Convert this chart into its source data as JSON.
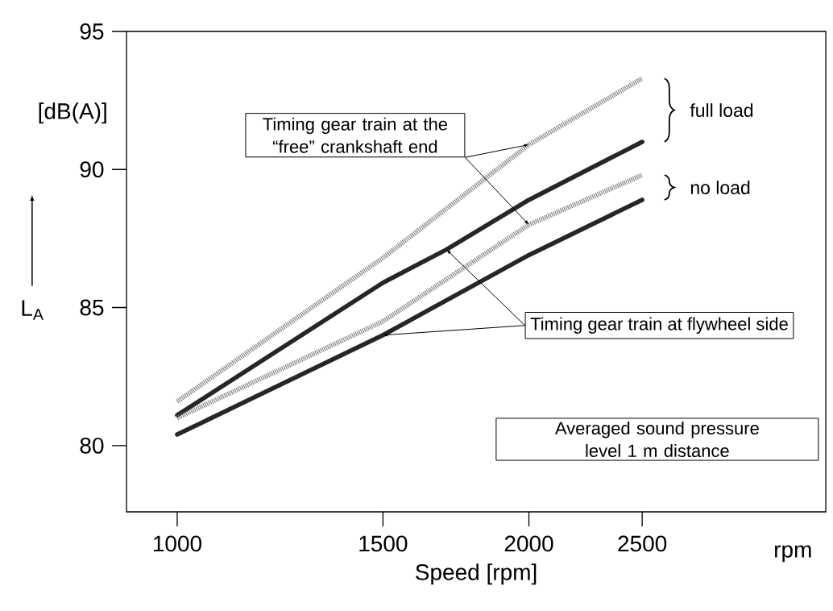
{
  "chart_data": {
    "type": "line",
    "xlabel": "Speed [rpm]",
    "ylabel": "L$_{A}$",
    "log": "x",
    "xlim": [
      905,
      3590
    ],
    "xticks": [
      1000,
      1500,
      2000,
      2500
    ],
    "ylim": [
      77.6,
      95
    ],
    "yticks": [
      80,
      85,
      90,
      95
    ],
    "series": [
      {
        "color": "#7a7a7a",
        "line_style": "dotted",
        "x": [
          1000,
          1500,
          2000,
          2500
        ],
        "values": [
          81.6,
          86.8,
          90.9,
          93.3
        ]
      },
      {
        "color": "#262626",
        "line_style": "solid",
        "x": [
          1000,
          1500,
          1700,
          2000,
          2500
        ],
        "values": [
          81.1,
          85.9,
          87.1,
          88.9,
          91.0
        ]
      },
      {
        "color": "#7a7a7a",
        "line_style": "dotted",
        "x": [
          1000,
          1500,
          2000,
          2500
        ],
        "values": [
          81.0,
          84.5,
          88.0,
          89.8
        ]
      },
      {
        "color": "#262626",
        "line_style": "solid",
        "x": [
          1000,
          1500,
          2000,
          2500
        ],
        "values": [
          80.4,
          84.0,
          86.9,
          88.9
        ]
      }
    ],
    "annotations": [
      "[dB(A)]",
      "rpm",
      {
        "text": "Timing gear train at the “free” crankshaft end",
        "x": 2000,
        "y": 90.9
      },
      {
        "text": "Timing gear train at flywheel side",
        "x": 1700,
        "y": 87.1
      },
      "Averaged sound pressure level 1 m distance",
      "full load",
      "no load"
    ]
  }
}
